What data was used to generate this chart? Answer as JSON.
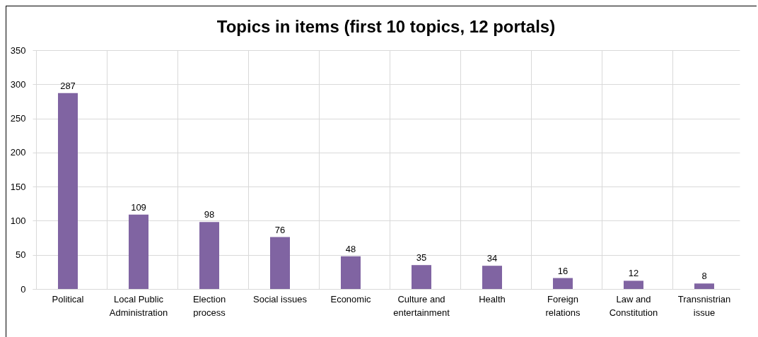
{
  "chart_data": {
    "type": "bar",
    "title": "Topics in items (first 10 topics, 12 portals)",
    "categories": [
      "Political",
      "Local Public Administration",
      "Election process",
      "Social issues",
      "Economic",
      "Culture and entertainment",
      "Health",
      "Foreign relations",
      "Law and Constitution",
      "Transnistrian issue"
    ],
    "values": [
      287,
      109,
      98,
      76,
      48,
      35,
      34,
      16,
      12,
      8
    ],
    "color": "#8064a2",
    "ylim": [
      0,
      350
    ],
    "yticks": [
      0,
      50,
      100,
      150,
      200,
      250,
      300,
      350
    ],
    "grid": true,
    "data_labels": true
  }
}
